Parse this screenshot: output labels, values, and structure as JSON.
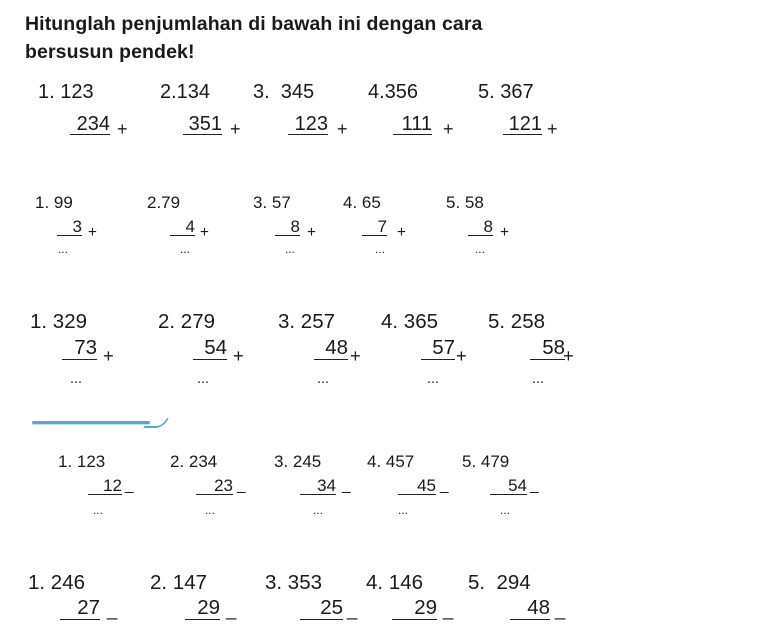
{
  "instruction": {
    "line1": "Hitunglah penjumlahan di bawah ini dengan cara",
    "line2": "bersusun pendek!"
  },
  "sections": [
    {
      "op": "+",
      "problems": [
        {
          "label": "1. 123",
          "second": "234",
          "answer": ""
        },
        {
          "label": "2.134",
          "second": "351",
          "answer": ""
        },
        {
          "label": "3.  345",
          "second": "123",
          "answer": ""
        },
        {
          "label": "4.356",
          "second": "111",
          "answer": ""
        },
        {
          "label": "5. 367",
          "second": "121",
          "answer": ""
        }
      ]
    },
    {
      "op": "+",
      "problems": [
        {
          "label": "1. 99",
          "second": "3",
          "answer": "..."
        },
        {
          "label": "2.79",
          "second": "4",
          "answer": "..."
        },
        {
          "label": "3. 57",
          "second": "8",
          "answer": "..."
        },
        {
          "label": "4. 65",
          "second": "7",
          "answer": "..."
        },
        {
          "label": "5. 58",
          "second": "8",
          "answer": "..."
        }
      ]
    },
    {
      "op": "+",
      "problems": [
        {
          "label": "1. 329",
          "second": "73",
          "answer": "..."
        },
        {
          "label": "2. 279",
          "second": "54",
          "answer": "..."
        },
        {
          "label": "3. 257",
          "second": "48",
          "answer": "..."
        },
        {
          "label": "4. 365",
          "second": "57",
          "answer": "..."
        },
        {
          "label": "5. 258",
          "second": "58",
          "answer": "..."
        }
      ]
    },
    {
      "op": "_",
      "problems": [
        {
          "label": "1. 123",
          "second": "12",
          "answer": "..."
        },
        {
          "label": "2. 234",
          "second": "23",
          "answer": "..."
        },
        {
          "label": "3. 245",
          "second": "34",
          "answer": "..."
        },
        {
          "label": "4. 457",
          "second": "45",
          "answer": "..."
        },
        {
          "label": "5. 479",
          "second": "54",
          "answer": "..."
        }
      ]
    },
    {
      "op": "_",
      "problems": [
        {
          "label": "1. 246",
          "second": "27",
          "answer": ""
        },
        {
          "label": "2. 147",
          "second": "29",
          "answer": ""
        },
        {
          "label": "3. 353",
          "second": "25",
          "answer": ""
        },
        {
          "label": "4. 146",
          "second": "29",
          "answer": ""
        },
        {
          "label": "5.  294",
          "second": "48",
          "answer": ""
        }
      ]
    }
  ],
  "colors": {
    "text": "#1a1a1a",
    "divider": "#5aa6d6"
  }
}
